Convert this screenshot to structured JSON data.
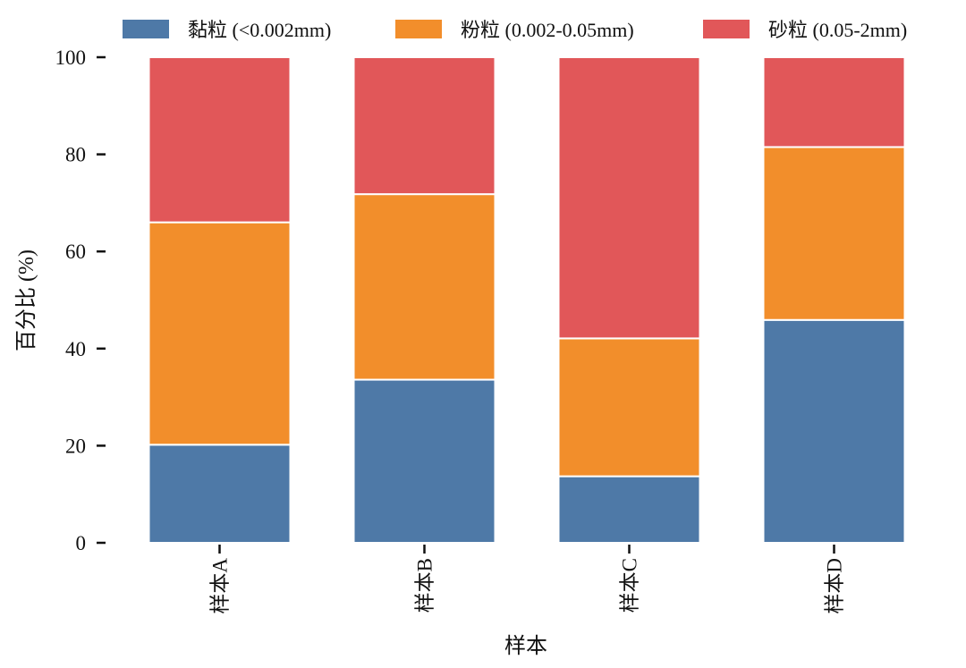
{
  "chart_data": {
    "type": "bar",
    "stacked": true,
    "categories": [
      "样本A",
      "样本B",
      "样本C",
      "样本D"
    ],
    "series": [
      {
        "name": "黏粒 (<0.002mm)",
        "values": [
          20.2,
          33.6,
          13.7,
          45.9
        ],
        "color": "#4e79a7"
      },
      {
        "name": "粉粒 (0.002-0.05mm)",
        "values": [
          45.8,
          38.2,
          28.4,
          35.6
        ],
        "color": "#f28e2b"
      },
      {
        "name": "砂粒 (0.05-2mm)",
        "values": [
          34.0,
          28.2,
          57.9,
          18.5
        ],
        "color": "#e15759"
      }
    ],
    "xlabel": "样本",
    "ylabel": "百分比 (%)",
    "ylim": [
      0,
      100
    ],
    "yticks": [
      0,
      20,
      40,
      60,
      80,
      100
    ],
    "grid": false,
    "legend_position": "top"
  }
}
